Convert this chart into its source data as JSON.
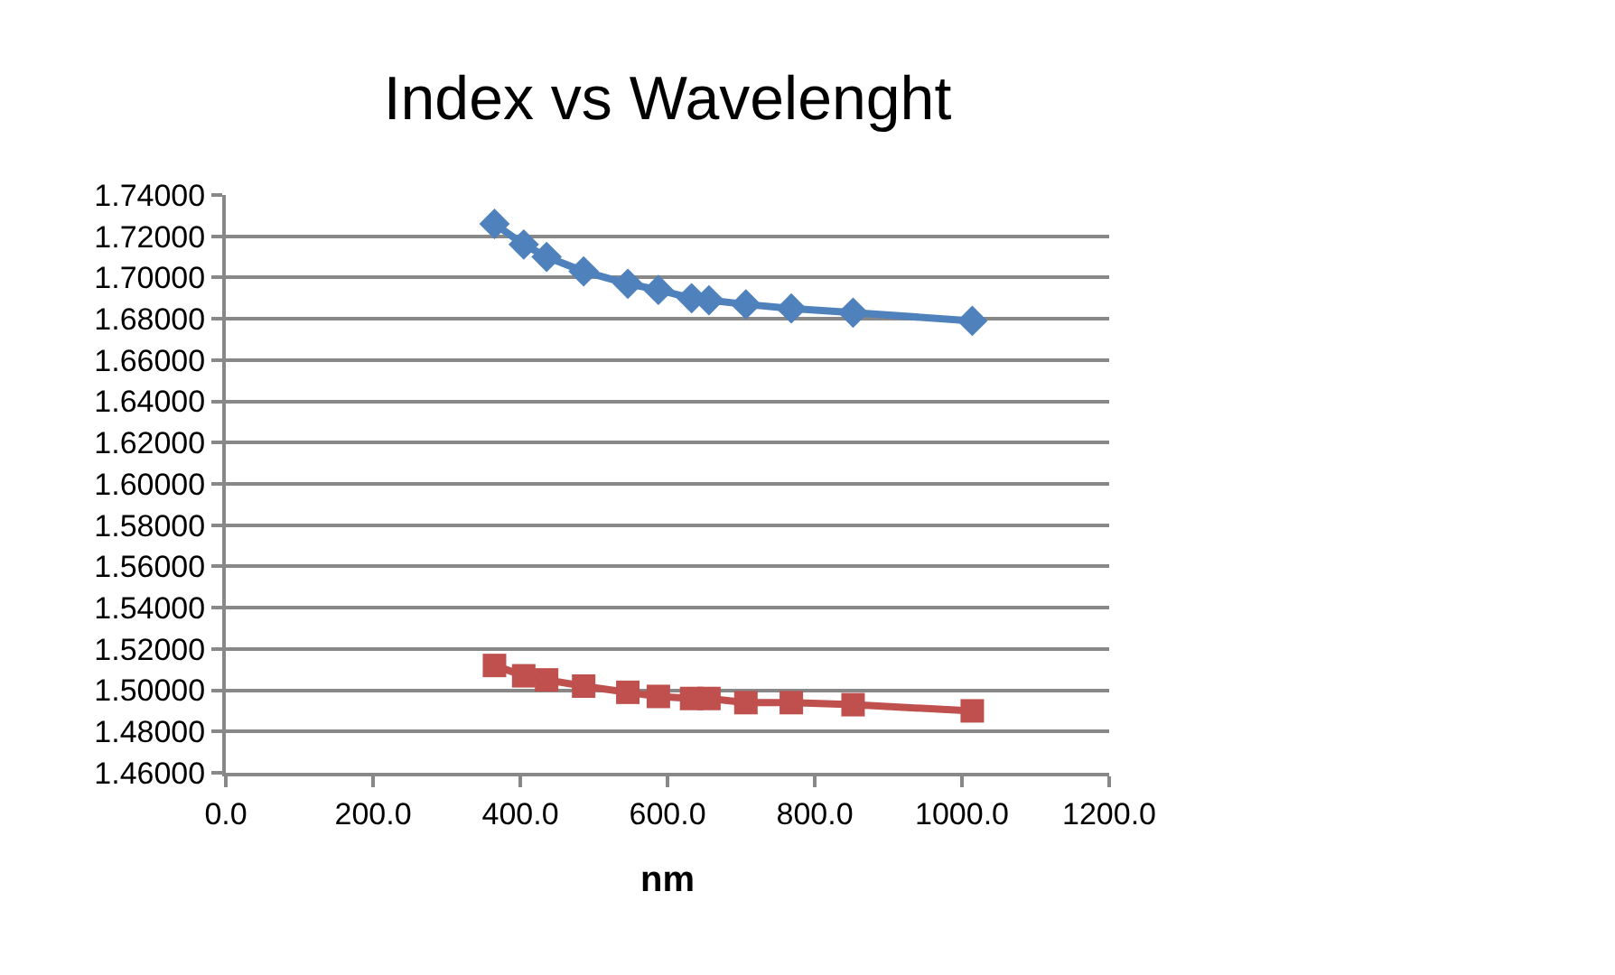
{
  "chart_data": {
    "type": "line",
    "title": "Index vs Wavelenght",
    "xlabel": "nm",
    "x": [
      365,
      404.7,
      435.8,
      486.1,
      546.1,
      587.6,
      632.8,
      656.3,
      706.5,
      768.2,
      852.1,
      1014
    ],
    "series": [
      {
        "color": "#4f81bd",
        "marker": "diamond",
        "values": [
          1.726,
          1.716,
          1.71,
          1.703,
          1.697,
          1.694,
          1.69,
          1.689,
          1.687,
          1.685,
          1.683,
          1.679
        ]
      },
      {
        "color": "#c0504d",
        "marker": "square",
        "values": [
          1.512,
          1.507,
          1.505,
          1.502,
          1.499,
          1.497,
          1.496,
          1.496,
          1.494,
          1.494,
          1.493,
          1.49
        ]
      }
    ],
    "xlim": [
      0,
      1200
    ],
    "xticks": [
      {
        "value": 0,
        "label": "0.0"
      },
      {
        "value": 200,
        "label": "200.0"
      },
      {
        "value": 400,
        "label": "400.0"
      },
      {
        "value": 600,
        "label": "600.0"
      },
      {
        "value": 800,
        "label": "800.0"
      },
      {
        "value": 1000,
        "label": "1000.0"
      },
      {
        "value": 1200,
        "label": "1200.0"
      }
    ],
    "ylim": [
      1.46,
      1.74
    ],
    "yticks": [
      {
        "value": 1.46,
        "label": "1.46000"
      },
      {
        "value": 1.48,
        "label": "1.48000"
      },
      {
        "value": 1.5,
        "label": "1.50000"
      },
      {
        "value": 1.52,
        "label": "1.52000"
      },
      {
        "value": 1.54,
        "label": "1.54000"
      },
      {
        "value": 1.56,
        "label": "1.56000"
      },
      {
        "value": 1.58,
        "label": "1.58000"
      },
      {
        "value": 1.6,
        "label": "1.60000"
      },
      {
        "value": 1.62,
        "label": "1.62000"
      },
      {
        "value": 1.64,
        "label": "1.64000"
      },
      {
        "value": 1.66,
        "label": "1.66000"
      },
      {
        "value": 1.68,
        "label": "1.68000"
      },
      {
        "value": 1.7,
        "label": "1.70000"
      },
      {
        "value": 1.72,
        "label": "1.72000"
      },
      {
        "value": 1.74,
        "label": "1.74000"
      }
    ],
    "grid": "y"
  }
}
